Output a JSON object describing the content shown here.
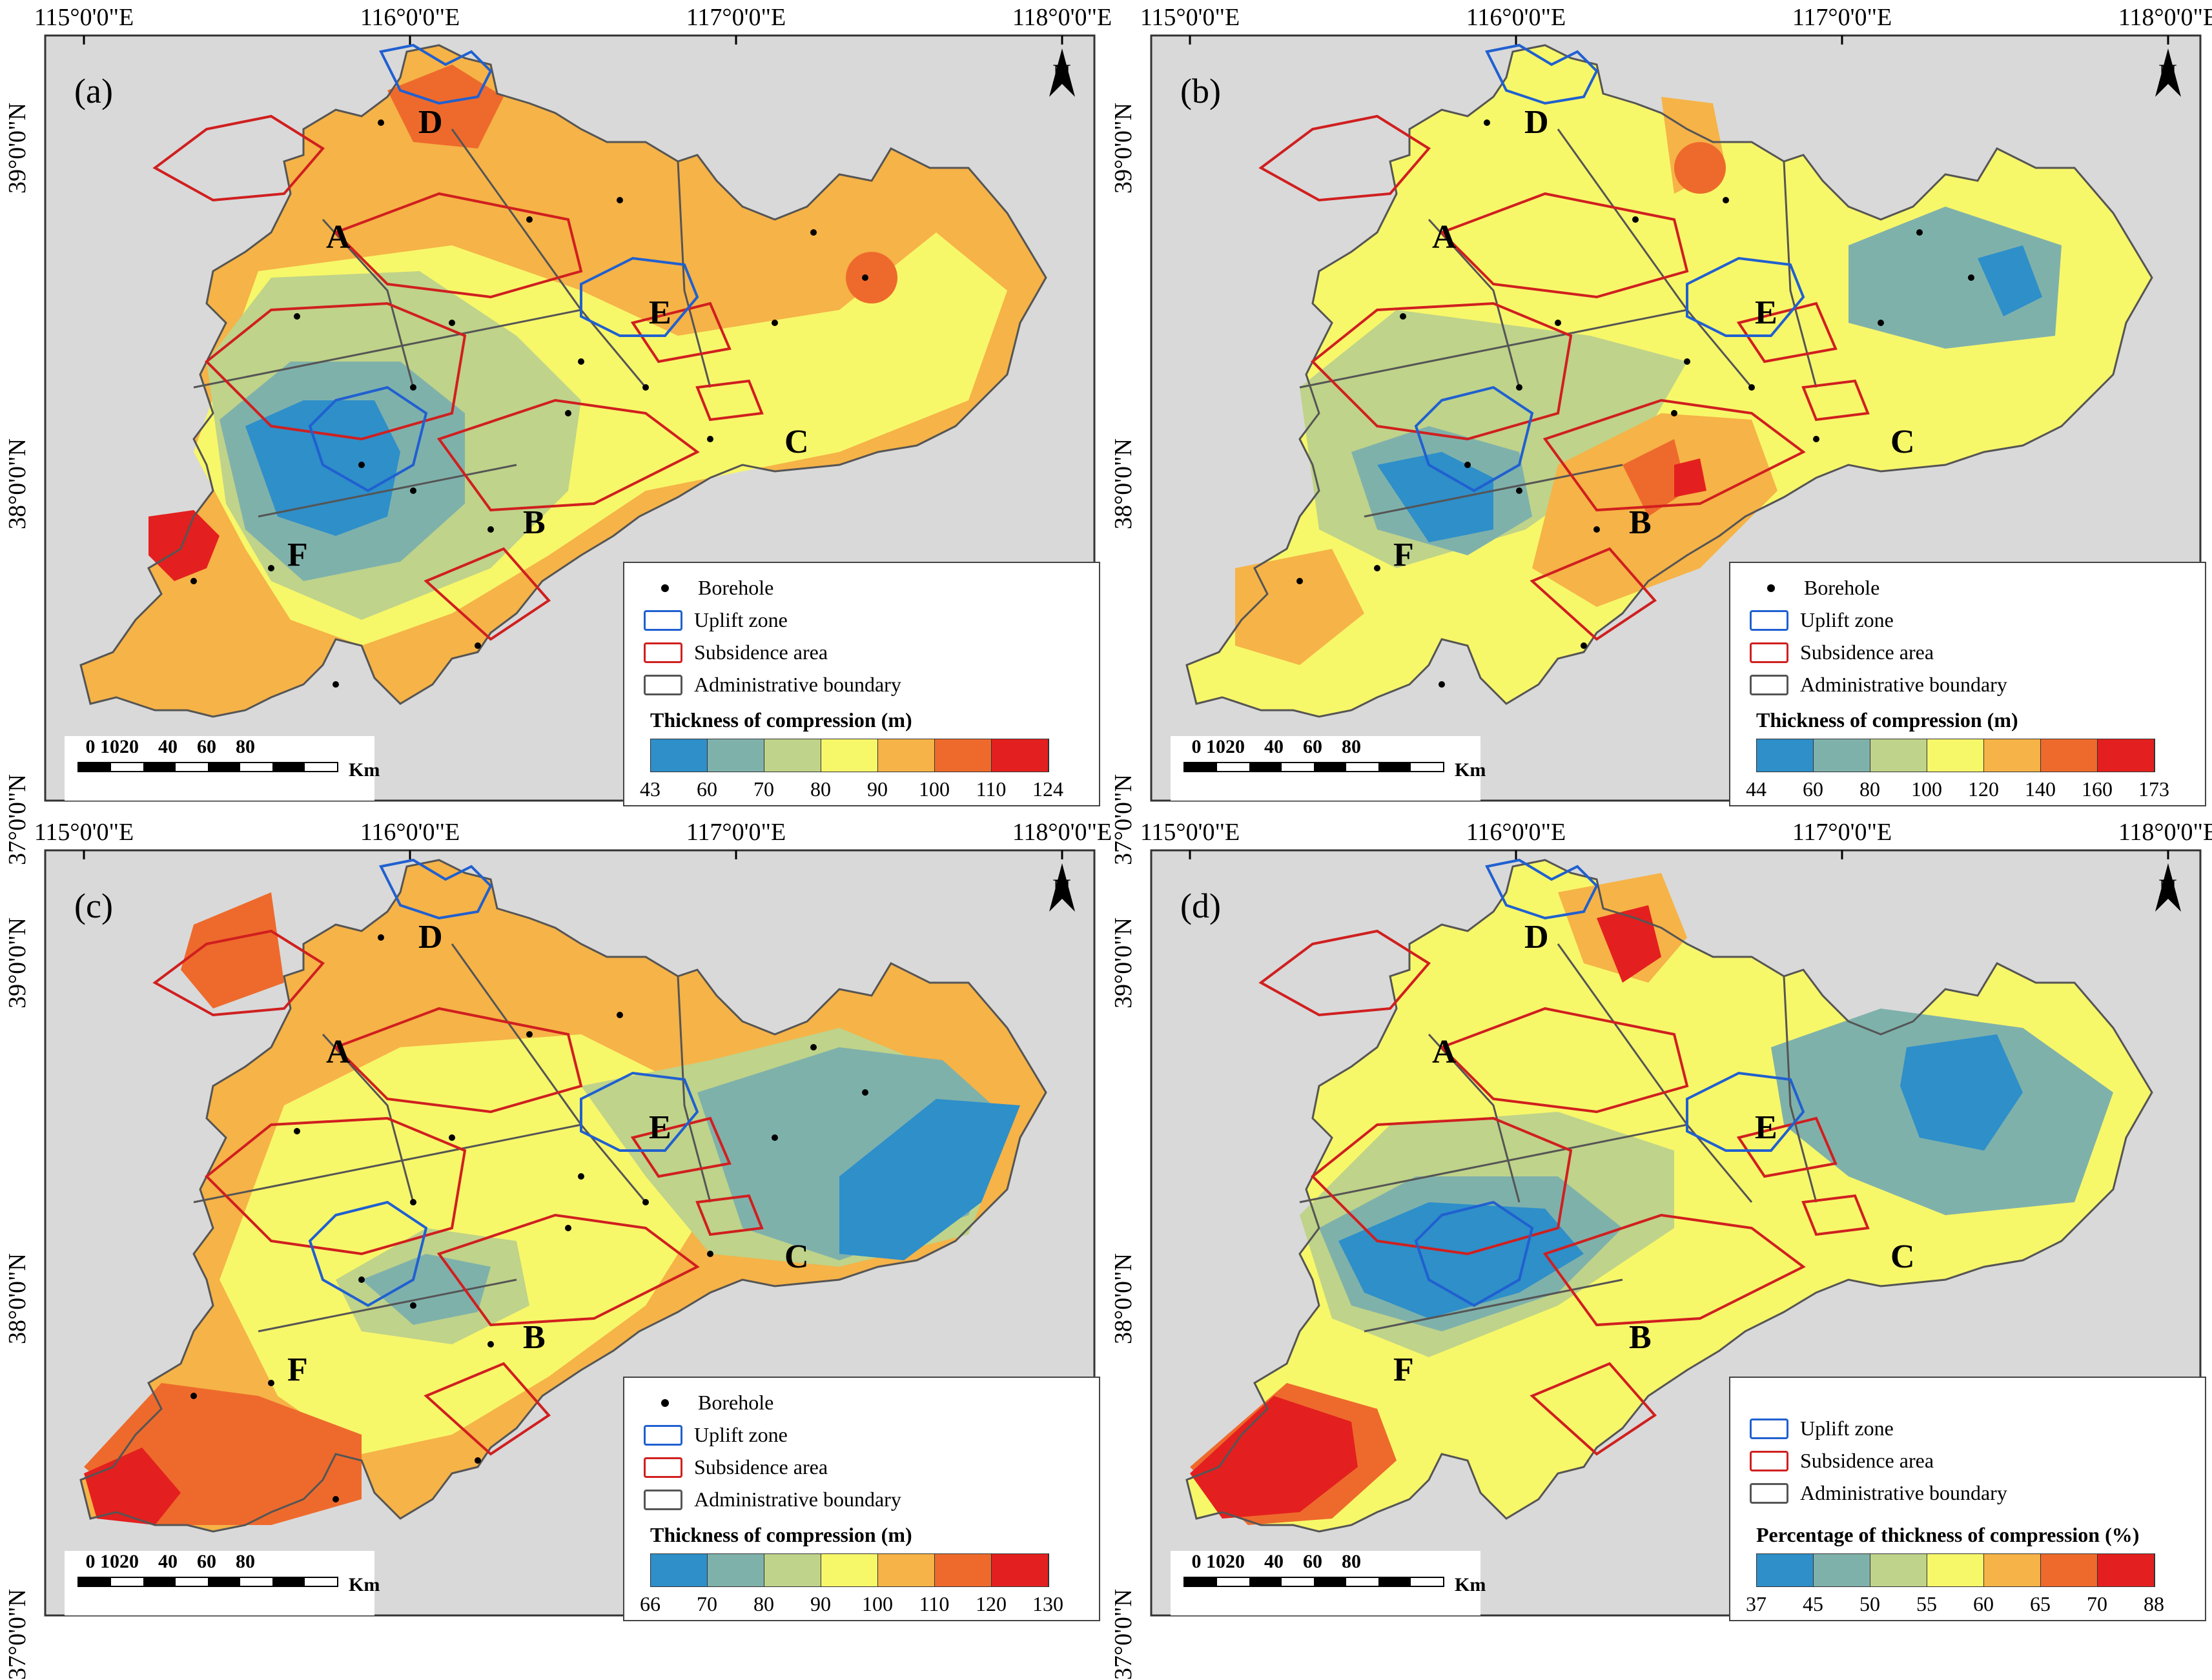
{
  "axes": {
    "lon_labels": [
      "115°0'0\"E",
      "116°0'0\"E",
      "117°0'0\"E",
      "118°0'0\"E"
    ],
    "lat_labels": [
      "39°0'0\"N",
      "38°0'0\"N",
      "37°0'0\"N"
    ]
  },
  "north_symbol": "N",
  "zone_labels": [
    "A",
    "B",
    "C",
    "D",
    "E",
    "F"
  ],
  "legend_items": {
    "borehole": "Borehole",
    "uplift": "Uplift zone",
    "subsidence": "Subsidence area",
    "admin": "Administrative boundary"
  },
  "scalebar": {
    "ticks": [
      "0",
      "10",
      "20",
      "40",
      "60",
      "80"
    ],
    "unit": "Km"
  },
  "panels": [
    {
      "id": "(a)",
      "legend_title": "Thickness of compression (m)",
      "breaks": [
        "43",
        "60",
        "70",
        "80",
        "90",
        "100",
        "110",
        "124"
      ],
      "show_borehole": true
    },
    {
      "id": "(b)",
      "legend_title": "Thickness of compression (m)",
      "breaks": [
        "44",
        "60",
        "80",
        "100",
        "120",
        "140",
        "160",
        "173"
      ],
      "show_borehole": true
    },
    {
      "id": "(c)",
      "legend_title": "Thickness of compression (m)",
      "breaks": [
        "66",
        "70",
        "80",
        "90",
        "100",
        "110",
        "120",
        "130"
      ],
      "show_borehole": true
    },
    {
      "id": "(d)",
      "legend_title": "Percentage of thickness of compression (%)",
      "breaks": [
        "37",
        "45",
        "50",
        "55",
        "60",
        "65",
        "70",
        "88"
      ],
      "show_borehole": false
    }
  ],
  "colors": {
    "ramp": [
      "#2e8fc9",
      "#7fb1ab",
      "#bfd38a",
      "#f7f76a",
      "#f6b347",
      "#ee6a2c",
      "#e3201f"
    ],
    "uplift": "#2060d0",
    "subsidence": "#d01f1f",
    "admin": "#555555",
    "background": "#d9d9d9"
  }
}
